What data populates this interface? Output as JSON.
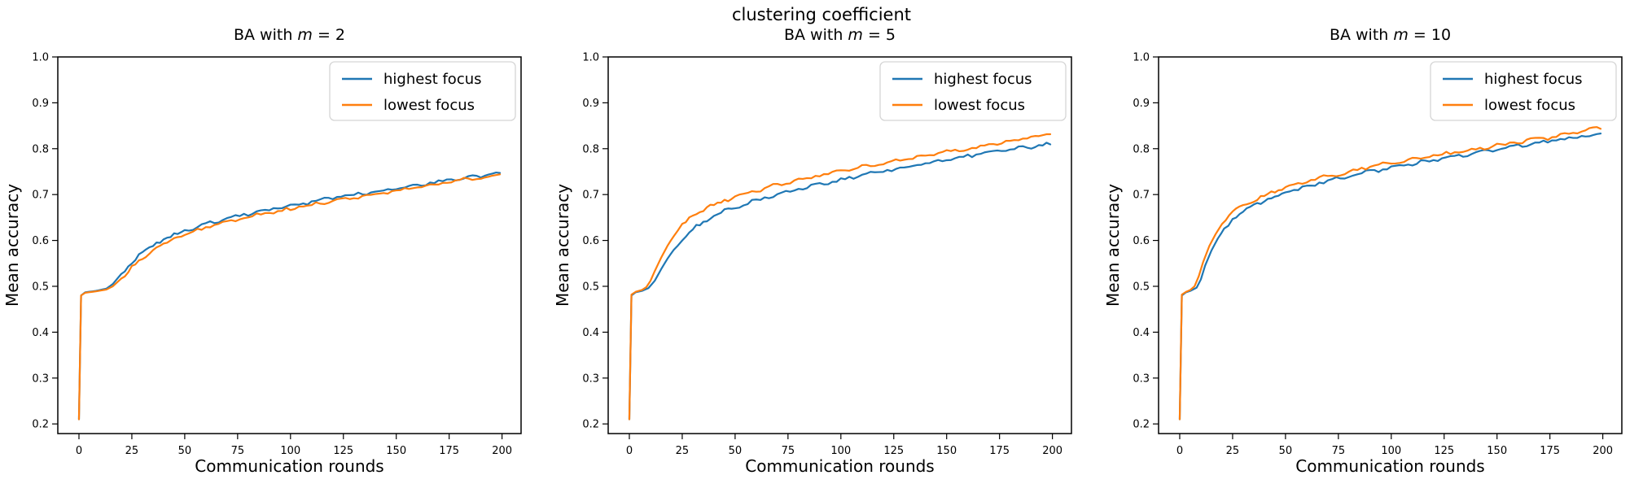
{
  "figure": {
    "title": "clustering coefficient"
  },
  "colors": {
    "highest_focus": "#1f77b4",
    "lowest_focus": "#ff7f0e",
    "axis": "#000000",
    "legend_border": "#d5d5d5",
    "background": "#ffffff"
  },
  "chart_data": [
    {
      "type": "line",
      "title": "BA with m = 2",
      "title_parts": {
        "prefix": "BA with ",
        "var": "m",
        "suffix": " = 2"
      },
      "xlabel": "Communication rounds",
      "ylabel": "Mean accuracy",
      "xlim": [
        -10,
        209
      ],
      "ylim": [
        0.179,
        1.0
      ],
      "xticks": [
        0,
        25,
        50,
        75,
        100,
        125,
        150,
        175,
        200
      ],
      "yticks": [
        0.2,
        0.3,
        0.4,
        0.5,
        0.6,
        0.7,
        0.8,
        0.9,
        1.0
      ],
      "ytick_labels": [
        "0.2",
        "0.3",
        "0.4",
        "0.5",
        "0.6",
        "0.7",
        "0.8",
        "0.9",
        "1.0"
      ],
      "grid": false,
      "legend_position": "upper right",
      "series": [
        {
          "name": "highest focus",
          "color": "#1f77b4",
          "x": [
            0,
            1,
            3,
            8,
            13,
            16,
            20,
            25,
            30,
            35,
            40,
            45,
            50,
            60,
            70,
            80,
            90,
            100,
            110,
            120,
            130,
            140,
            150,
            160,
            170,
            180,
            190,
            199
          ],
          "y": [
            0.21,
            0.48,
            0.487,
            0.49,
            0.495,
            0.505,
            0.527,
            0.553,
            0.574,
            0.59,
            0.602,
            0.612,
            0.621,
            0.636,
            0.648,
            0.658,
            0.667,
            0.676,
            0.684,
            0.692,
            0.7,
            0.707,
            0.714,
            0.721,
            0.728,
            0.735,
            0.741,
            0.746
          ]
        },
        {
          "name": "lowest focus",
          "color": "#ff7f0e",
          "x": [
            0,
            1,
            3,
            8,
            13,
            16,
            20,
            25,
            30,
            35,
            40,
            45,
            50,
            60,
            70,
            80,
            90,
            100,
            110,
            120,
            130,
            140,
            150,
            160,
            170,
            180,
            190,
            199
          ],
          "y": [
            0.21,
            0.48,
            0.486,
            0.489,
            0.493,
            0.5,
            0.517,
            0.541,
            0.562,
            0.579,
            0.592,
            0.603,
            0.612,
            0.628,
            0.64,
            0.651,
            0.66,
            0.669,
            0.678,
            0.686,
            0.694,
            0.701,
            0.708,
            0.716,
            0.724,
            0.731,
            0.738,
            0.743
          ]
        }
      ]
    },
    {
      "type": "line",
      "title": "BA with m = 5",
      "title_parts": {
        "prefix": "BA with ",
        "var": "m",
        "suffix": " = 5"
      },
      "xlabel": "Communication rounds",
      "ylabel": "Mean accuracy",
      "xlim": [
        -10,
        209
      ],
      "ylim": [
        0.179,
        1.0
      ],
      "xticks": [
        0,
        25,
        50,
        75,
        100,
        125,
        150,
        175,
        200
      ],
      "yticks": [
        0.2,
        0.3,
        0.4,
        0.5,
        0.6,
        0.7,
        0.8,
        0.9,
        1.0
      ],
      "ytick_labels": [
        "0.2",
        "0.3",
        "0.4",
        "0.5",
        "0.6",
        "0.7",
        "0.8",
        "0.9",
        "1.0"
      ],
      "grid": false,
      "legend_position": "upper right",
      "series": [
        {
          "name": "highest focus",
          "color": "#1f77b4",
          "x": [
            0,
            1,
            3,
            6,
            9,
            12,
            15,
            18,
            21,
            25,
            30,
            35,
            40,
            45,
            50,
            60,
            70,
            80,
            90,
            100,
            110,
            120,
            130,
            140,
            150,
            160,
            170,
            180,
            190,
            199
          ],
          "y": [
            0.21,
            0.48,
            0.487,
            0.49,
            0.496,
            0.512,
            0.537,
            0.56,
            0.58,
            0.602,
            0.624,
            0.64,
            0.653,
            0.664,
            0.673,
            0.688,
            0.7,
            0.712,
            0.722,
            0.732,
            0.742,
            0.751,
            0.76,
            0.768,
            0.776,
            0.784,
            0.791,
            0.798,
            0.804,
            0.81
          ]
        },
        {
          "name": "lowest focus",
          "color": "#ff7f0e",
          "x": [
            0,
            1,
            3,
            6,
            8,
            10,
            12,
            15,
            18,
            21,
            25,
            30,
            35,
            40,
            45,
            50,
            60,
            70,
            80,
            90,
            100,
            110,
            120,
            130,
            140,
            150,
            160,
            170,
            180,
            190,
            199
          ],
          "y": [
            0.21,
            0.482,
            0.488,
            0.492,
            0.498,
            0.512,
            0.533,
            0.562,
            0.588,
            0.61,
            0.633,
            0.653,
            0.667,
            0.678,
            0.687,
            0.695,
            0.709,
            0.721,
            0.732,
            0.742,
            0.752,
            0.761,
            0.769,
            0.777,
            0.785,
            0.793,
            0.8,
            0.808,
            0.816,
            0.825,
            0.834
          ]
        }
      ]
    },
    {
      "type": "line",
      "title": "BA with m = 10",
      "title_parts": {
        "prefix": "BA with ",
        "var": "m",
        "suffix": " = 10"
      },
      "xlabel": "Communication rounds",
      "ylabel": "Mean accuracy",
      "xlim": [
        -10,
        209
      ],
      "ylim": [
        0.179,
        1.0
      ],
      "xticks": [
        0,
        25,
        50,
        75,
        100,
        125,
        150,
        175,
        200
      ],
      "yticks": [
        0.2,
        0.3,
        0.4,
        0.5,
        0.6,
        0.7,
        0.8,
        0.9,
        1.0
      ],
      "ytick_labels": [
        "0.2",
        "0.3",
        "0.4",
        "0.5",
        "0.6",
        "0.7",
        "0.8",
        "0.9",
        "1.0"
      ],
      "grid": false,
      "legend_position": "upper right",
      "series": [
        {
          "name": "highest focus",
          "color": "#1f77b4",
          "x": [
            0,
            1,
            3,
            5,
            8,
            10,
            12,
            15,
            18,
            21,
            25,
            30,
            35,
            40,
            45,
            50,
            60,
            70,
            80,
            90,
            100,
            110,
            120,
            130,
            140,
            150,
            160,
            170,
            180,
            190,
            199
          ],
          "y": [
            0.21,
            0.48,
            0.487,
            0.49,
            0.497,
            0.515,
            0.545,
            0.578,
            0.604,
            0.625,
            0.647,
            0.664,
            0.677,
            0.687,
            0.696,
            0.704,
            0.718,
            0.73,
            0.74,
            0.75,
            0.759,
            0.767,
            0.775,
            0.783,
            0.79,
            0.798,
            0.806,
            0.813,
            0.82,
            0.827,
            0.833
          ]
        },
        {
          "name": "lowest focus",
          "color": "#ff7f0e",
          "x": [
            0,
            1,
            3,
            5,
            7,
            9,
            11,
            14,
            17,
            20,
            25,
            30,
            35,
            40,
            45,
            50,
            60,
            70,
            80,
            90,
            100,
            110,
            120,
            130,
            140,
            150,
            160,
            170,
            180,
            190,
            199
          ],
          "y": [
            0.21,
            0.482,
            0.488,
            0.492,
            0.5,
            0.522,
            0.552,
            0.588,
            0.614,
            0.636,
            0.66,
            0.676,
            0.688,
            0.698,
            0.707,
            0.715,
            0.729,
            0.74,
            0.75,
            0.76,
            0.769,
            0.777,
            0.785,
            0.792,
            0.799,
            0.807,
            0.814,
            0.821,
            0.828,
            0.838,
            0.847
          ]
        }
      ]
    }
  ]
}
